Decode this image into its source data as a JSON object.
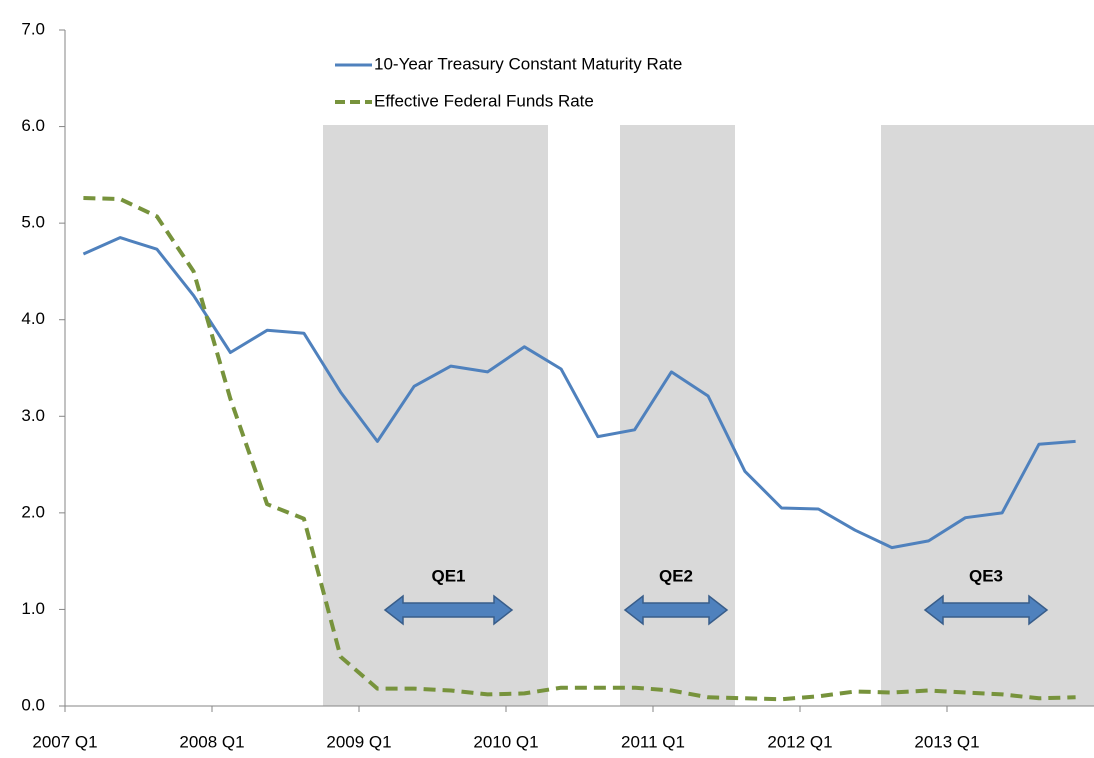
{
  "chart_data": {
    "type": "line",
    "categories": [
      "2007 Q1",
      null,
      null,
      null,
      "2008 Q1",
      null,
      null,
      null,
      "2009 Q1",
      null,
      null,
      null,
      "2010 Q1",
      null,
      null,
      null,
      "2011 Q1",
      null,
      null,
      null,
      "2012 Q1",
      null,
      null,
      null,
      "2013 Q1",
      null,
      null,
      null
    ],
    "series": [
      {
        "name": "10-Year Treasury Constant Maturity Rate",
        "color": "#4f81bd",
        "dash": false,
        "values": [
          4.68,
          4.85,
          4.73,
          4.25,
          3.66,
          3.89,
          3.86,
          3.25,
          2.74,
          3.31,
          3.52,
          3.46,
          3.72,
          3.49,
          2.79,
          2.86,
          3.46,
          3.21,
          2.43,
          2.05,
          2.04,
          1.82,
          1.64,
          1.71,
          1.95,
          2.0,
          2.71,
          2.74
        ]
      },
      {
        "name": "Effective Federal Funds Rate",
        "color": "#77933c",
        "dash": true,
        "values": [
          5.26,
          5.25,
          5.07,
          4.5,
          3.18,
          2.09,
          1.94,
          0.51,
          0.18,
          0.18,
          0.16,
          0.12,
          0.13,
          0.19,
          0.19,
          0.19,
          0.16,
          0.09,
          0.08,
          0.07,
          0.1,
          0.15,
          0.14,
          0.16,
          0.14,
          0.12,
          0.08,
          0.09
        ]
      }
    ],
    "ylim": [
      0,
      7
    ],
    "yticks": [
      {
        "value": 0,
        "label": "0.0"
      },
      {
        "value": 1,
        "label": "1.0"
      },
      {
        "value": 2,
        "label": "2.0"
      },
      {
        "value": 3,
        "label": "3.0"
      },
      {
        "value": 4,
        "label": "4.0"
      },
      {
        "value": 5,
        "label": "5.0"
      },
      {
        "value": 6,
        "label": "6.0"
      },
      {
        "value": 7,
        "label": "7.0"
      }
    ],
    "annotations": [
      "QE1",
      "QE2",
      "QE3"
    ],
    "grid": false,
    "legend": "top"
  }
}
